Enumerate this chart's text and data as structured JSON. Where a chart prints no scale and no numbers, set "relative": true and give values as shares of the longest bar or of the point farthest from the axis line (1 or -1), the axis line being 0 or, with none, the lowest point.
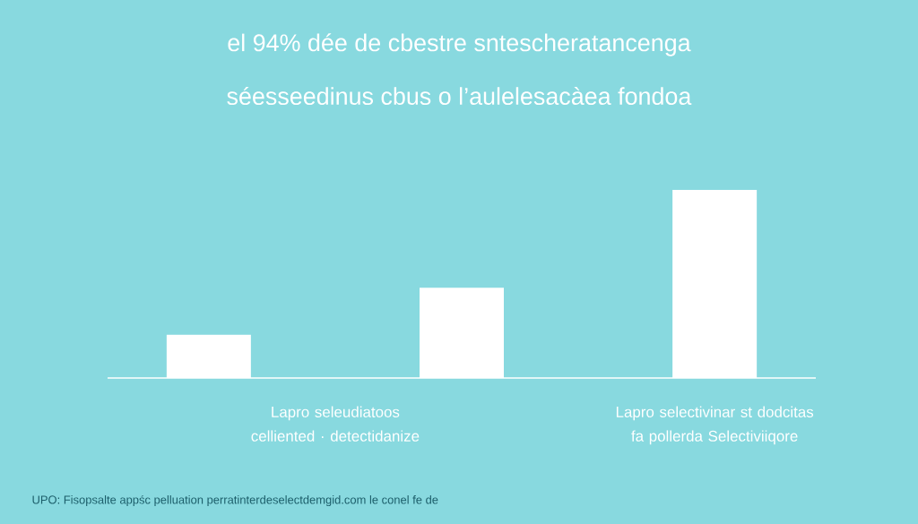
{
  "chart_data": {
    "type": "bar",
    "title": "el    94% dée de cbestre sntescheratancenga",
    "subtitle": "séesseedinus cbus o l’aulelesacàea fondoa",
    "categories": [
      null,
      null,
      null
    ],
    "values": [
      0.23,
      0.48,
      1
    ],
    "color": "#ffffff",
    "relative": true,
    "annotations": [
      "Lapro  seleudiatoos celliented · detectidanize",
      "Lapro selectivinar st dodcitas fa pollerda Selectiviiqore",
      "UPO: Fisopsalte appśc pelluation perratinterdeselectdemgid.com le conel fe de"
    ]
  }
}
